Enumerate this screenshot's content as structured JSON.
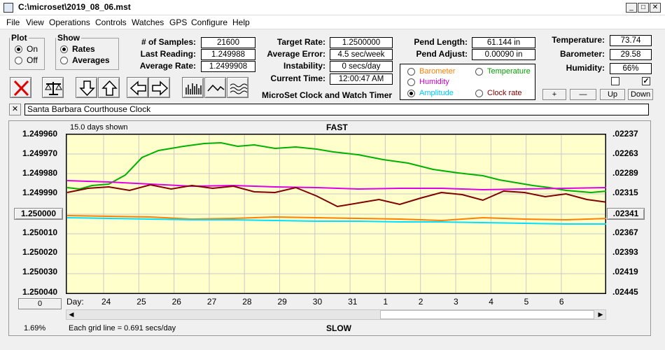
{
  "window": {
    "title": "C:\\microset\\2019_08_06.mst"
  },
  "menu": [
    "File",
    "View",
    "Operations",
    "Controls",
    "Watches",
    "GPS",
    "Configure",
    "Help"
  ],
  "plot_group": {
    "title": "Plot",
    "options": [
      "On",
      "Off"
    ],
    "selected": "On"
  },
  "show_group": {
    "title": "Show",
    "options": [
      "Rates",
      "Averages"
    ],
    "selected": "Rates"
  },
  "fields": {
    "samples": {
      "label": "# of Samples:",
      "value": "21600"
    },
    "last_reading": {
      "label": "Last Reading:",
      "value": "1.249988"
    },
    "average_rate": {
      "label": "Average Rate:",
      "value": "1.2499908"
    },
    "target_rate": {
      "label": "Target Rate:",
      "value": "1.2500000"
    },
    "average_error": {
      "label": "Average Error:",
      "value": "4.5 sec/week"
    },
    "instability": {
      "label": "Instability:",
      "value": "0 secs/day"
    },
    "current_time": {
      "label": "Current Time:",
      "value": "12:00:47 AM"
    },
    "pend_length": {
      "label": "Pend Length:",
      "value": "61.144 in"
    },
    "pend_adjust": {
      "label": "Pend Adjust:",
      "value": "0.00090 in"
    },
    "temperature": {
      "label": "Temperature:",
      "value": "73.74"
    },
    "barometer": {
      "label": "Barometer:",
      "value": "29.58"
    },
    "humidity": {
      "label": "Humidity:",
      "value": "66%"
    }
  },
  "app_caption": "MicroSet Clock and Watch Timer",
  "sensor_options": [
    {
      "label": "Barometer",
      "color": "#ff8000",
      "selected": false
    },
    {
      "label": "Temperature",
      "color": "#00a000",
      "selected": false
    },
    {
      "label": "Humidity",
      "color": "#d000d0",
      "selected": false
    },
    {
      "label": "Amplitude",
      "color": "#00c8ff",
      "selected": true
    },
    {
      "label": "Clock rate",
      "color": "#800000",
      "selected": false
    }
  ],
  "small_buttons": {
    "plus": "+",
    "minus": "—",
    "up": "Up",
    "down": "Down"
  },
  "checkboxes": [
    {
      "checked": false
    },
    {
      "checked": true
    }
  ],
  "clock_name": "Santa Barbara Courthouse Clock",
  "close_symbol": "✕",
  "chart_data": {
    "type": "line",
    "top_label": "FAST",
    "bottom_label": "SLOW",
    "days_shown": "15.0 days shown",
    "grid_note": "Each grid line = 0.691 secs/day",
    "zoom_percent": "1.69%",
    "day_label": "Day:",
    "days": [
      "24",
      "25",
      "26",
      "27",
      "28",
      "29",
      "30",
      "31",
      "1",
      "2",
      "3",
      "4",
      "5",
      "6"
    ],
    "left_axis": [
      "1.249960",
      "1.249970",
      "1.249980",
      "1.249990",
      "1.250000",
      "1.250010",
      "1.250020",
      "1.250030",
      "1.250040"
    ],
    "right_axis": [
      ".02237",
      ".02263",
      ".02289",
      ".02315",
      ".02341",
      ".02367",
      ".02393",
      ".02419",
      ".02445"
    ],
    "left_button": "0",
    "ylim_left": [
      1.24996,
      1.25004
    ],
    "series": [
      {
        "color": "#00b000",
        "points": [
          [
            0,
            73
          ],
          [
            3,
            75
          ],
          [
            6,
            70
          ],
          [
            10,
            68
          ],
          [
            14,
            55
          ],
          [
            18,
            30
          ],
          [
            22,
            20
          ],
          [
            28,
            14
          ],
          [
            33,
            10
          ],
          [
            37,
            9
          ],
          [
            41,
            14
          ],
          [
            45,
            12
          ],
          [
            50,
            17
          ],
          [
            55,
            15
          ],
          [
            60,
            18
          ],
          [
            64,
            22
          ],
          [
            70,
            26
          ],
          [
            76,
            33
          ],
          [
            82,
            38
          ],
          [
            88,
            47
          ],
          [
            94,
            52
          ],
          [
            100,
            56
          ],
          [
            104,
            62
          ],
          [
            108,
            66
          ],
          [
            112,
            70
          ],
          [
            116,
            73
          ],
          [
            120,
            77
          ],
          [
            126,
            80
          ],
          [
            132,
            77
          ],
          [
            138,
            74
          ],
          [
            146,
            68
          ],
          [
            154,
            71
          ],
          [
            160,
            73
          ],
          [
            166,
            67
          ],
          [
            172,
            71
          ],
          [
            178,
            78
          ],
          [
            184,
            77
          ],
          [
            190,
            76
          ],
          [
            196,
            72
          ],
          [
            202,
            68
          ],
          [
            208,
            65
          ],
          [
            214,
            67
          ],
          [
            220,
            70
          ],
          [
            226,
            73
          ],
          [
            232,
            77
          ],
          [
            238,
            72
          ],
          [
            244,
            70
          ],
          [
            250,
            66
          ],
          [
            256,
            63
          ],
          [
            262,
            66
          ],
          [
            268,
            69
          ],
          [
            274,
            72
          ],
          [
            280,
            70
          ],
          [
            286,
            67
          ],
          [
            292,
            70
          ],
          [
            298,
            73
          ],
          [
            304,
            77
          ],
          [
            310,
            74
          ]
        ]
      },
      {
        "color": "#e000e0",
        "points": [
          [
            0,
            63
          ],
          [
            10,
            65
          ],
          [
            20,
            68
          ],
          [
            30,
            71
          ],
          [
            40,
            70
          ],
          [
            50,
            72
          ],
          [
            60,
            73
          ],
          [
            70,
            75
          ],
          [
            80,
            74
          ],
          [
            90,
            74
          ],
          [
            100,
            76
          ],
          [
            110,
            75
          ],
          [
            120,
            74
          ],
          [
            130,
            73
          ],
          [
            140,
            73
          ],
          [
            150,
            74
          ],
          [
            160,
            73
          ],
          [
            170,
            72
          ],
          [
            180,
            73
          ],
          [
            190,
            72
          ],
          [
            200,
            72
          ],
          [
            210,
            72
          ],
          [
            220,
            73
          ],
          [
            230,
            72
          ],
          [
            240,
            72
          ],
          [
            250,
            72
          ],
          [
            260,
            72
          ],
          [
            270,
            72
          ],
          [
            280,
            72
          ],
          [
            290,
            72
          ],
          [
            300,
            72
          ],
          [
            310,
            72
          ]
        ]
      },
      {
        "color": "#800000",
        "points": [
          [
            0,
            80
          ],
          [
            5,
            74
          ],
          [
            10,
            72
          ],
          [
            15,
            77
          ],
          [
            20,
            69
          ],
          [
            25,
            75
          ],
          [
            30,
            70
          ],
          [
            35,
            74
          ],
          [
            40,
            71
          ],
          [
            45,
            79
          ],
          [
            50,
            80
          ],
          [
            55,
            73
          ],
          [
            60,
            85
          ],
          [
            65,
            100
          ],
          [
            70,
            95
          ],
          [
            75,
            90
          ],
          [
            80,
            97
          ],
          [
            85,
            88
          ],
          [
            90,
            80
          ],
          [
            95,
            83
          ],
          [
            100,
            91
          ],
          [
            105,
            78
          ],
          [
            110,
            80
          ],
          [
            115,
            86
          ],
          [
            120,
            82
          ],
          [
            125,
            90
          ],
          [
            130,
            94
          ],
          [
            135,
            86
          ],
          [
            140,
            81
          ],
          [
            145,
            78
          ],
          [
            150,
            82
          ],
          [
            155,
            75
          ],
          [
            160,
            80
          ],
          [
            165,
            74
          ],
          [
            170,
            76
          ],
          [
            175,
            70
          ],
          [
            180,
            73
          ],
          [
            185,
            66
          ],
          [
            190,
            71
          ],
          [
            195,
            80
          ],
          [
            200,
            88
          ],
          [
            205,
            79
          ],
          [
            210,
            85
          ],
          [
            215,
            78
          ],
          [
            220,
            81
          ],
          [
            225,
            76
          ],
          [
            230,
            83
          ],
          [
            235,
            73
          ],
          [
            240,
            78
          ],
          [
            245,
            72
          ],
          [
            250,
            76
          ],
          [
            255,
            73
          ],
          [
            260,
            77
          ],
          [
            265,
            71
          ],
          [
            270,
            75
          ],
          [
            275,
            80
          ],
          [
            280,
            72
          ],
          [
            285,
            77
          ],
          [
            290,
            71
          ],
          [
            295,
            74
          ],
          [
            300,
            68
          ],
          [
            305,
            74
          ],
          [
            310,
            72
          ]
        ]
      },
      {
        "color": "#ff8000",
        "points": [
          [
            0,
            113
          ],
          [
            10,
            114
          ],
          [
            20,
            115
          ],
          [
            30,
            118
          ],
          [
            40,
            117
          ],
          [
            50,
            115
          ],
          [
            60,
            116
          ],
          [
            70,
            117
          ],
          [
            80,
            118
          ],
          [
            90,
            120
          ],
          [
            100,
            116
          ],
          [
            110,
            118
          ],
          [
            120,
            119
          ],
          [
            130,
            117
          ],
          [
            140,
            116
          ],
          [
            150,
            118
          ],
          [
            160,
            117
          ],
          [
            170,
            118
          ],
          [
            180,
            117
          ],
          [
            190,
            119
          ],
          [
            200,
            119
          ],
          [
            210,
            122
          ],
          [
            220,
            120
          ],
          [
            230,
            121
          ],
          [
            240,
            119
          ],
          [
            250,
            121
          ],
          [
            260,
            120
          ],
          [
            270,
            123
          ],
          [
            280,
            121
          ],
          [
            290,
            120
          ],
          [
            300,
            121
          ],
          [
            310,
            117
          ]
        ]
      },
      {
        "color": "#00e0ff",
        "points": [
          [
            0,
            116
          ],
          [
            10,
            117
          ],
          [
            20,
            118
          ],
          [
            30,
            119
          ],
          [
            40,
            119
          ],
          [
            50,
            120
          ],
          [
            60,
            121
          ],
          [
            70,
            121
          ],
          [
            80,
            122
          ],
          [
            90,
            122
          ],
          [
            100,
            123
          ],
          [
            110,
            124
          ],
          [
            120,
            125
          ],
          [
            130,
            125
          ],
          [
            140,
            126
          ],
          [
            150,
            126
          ],
          [
            160,
            127
          ],
          [
            170,
            127
          ],
          [
            180,
            128
          ],
          [
            190,
            128
          ],
          [
            200,
            129
          ],
          [
            210,
            129
          ],
          [
            220,
            130
          ],
          [
            230,
            130
          ],
          [
            240,
            131
          ],
          [
            250,
            131
          ],
          [
            260,
            131
          ],
          [
            270,
            132
          ],
          [
            280,
            132
          ],
          [
            290,
            133
          ],
          [
            300,
            133
          ],
          [
            310,
            134
          ]
        ]
      }
    ]
  }
}
